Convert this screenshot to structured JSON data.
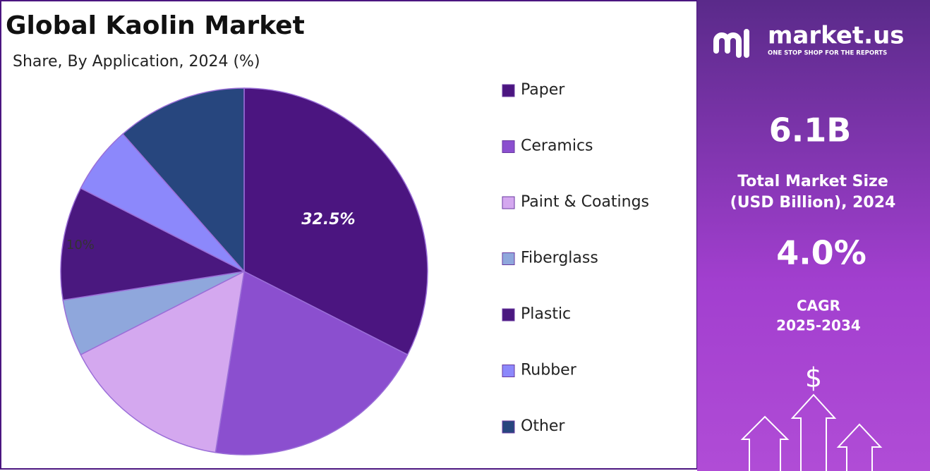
{
  "chart_data": {
    "type": "pie",
    "title": "Global Kaolin Market",
    "subtitle": "Share, By Application, 2024 (%)",
    "categories": [
      "Paper",
      "Ceramics",
      "Paint & Coatings",
      "Fiberglass",
      "Plastic",
      "Rubber",
      "Other"
    ],
    "values": [
      32.5,
      20,
      15,
      5,
      10,
      6,
      11.5
    ],
    "value_labels": [
      "32.5%",
      null,
      null,
      null,
      "10%",
      null,
      null
    ],
    "colors": [
      "#4b1580",
      "#8b4fcf",
      "#d4a8ef",
      "#8fa7dc",
      "#4a187f",
      "#8c88fb",
      "#27467e"
    ],
    "legend": "right"
  },
  "panel": {
    "brand": "market.us",
    "tagline": "ONE STOP SHOP FOR THE REPORTS",
    "market_size": "6.1B",
    "market_size_label": [
      "Total Market Size",
      "(USD Billion), 2024"
    ],
    "cagr": "4.0%",
    "cagr_label": [
      "CAGR",
      "2025-2034"
    ],
    "symbol": "$"
  }
}
